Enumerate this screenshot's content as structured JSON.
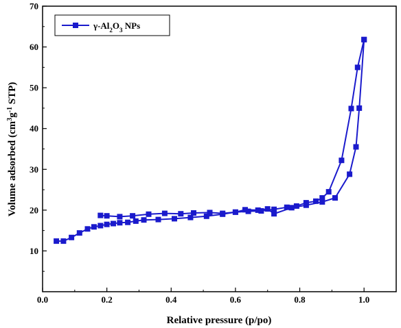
{
  "chart_data": {
    "type": "line",
    "title": "",
    "xlabel": "Relative pressure (p/po)",
    "ylabel_parts": [
      "Volume adsorbed (cm",
      "3",
      "g",
      "-1",
      " STP)"
    ],
    "xlim": [
      0.0,
      1.1
    ],
    "ylim": [
      0,
      70
    ],
    "xticks": [
      0.0,
      0.2,
      0.4,
      0.6,
      0.8,
      1.0
    ],
    "xtick_labels": [
      "0.0",
      "0.2",
      "0.4",
      "0.6",
      "0.8",
      "1.0"
    ],
    "yticks": [
      10,
      20,
      30,
      40,
      50,
      60,
      70
    ],
    "ytick_labels": [
      "10",
      "20",
      "30",
      "40",
      "50",
      "60",
      "70"
    ],
    "grid": false,
    "legend": {
      "placement": "top-left",
      "label_parts": [
        "γ-Al",
        "2",
        "O",
        "3",
        " NPs"
      ]
    },
    "series": [
      {
        "name": "γ-Al2O3 NPs",
        "color": "#1a1acc",
        "marker": "square",
        "adsorption": {
          "x": [
            0.043,
            0.065,
            0.09,
            0.115,
            0.14,
            0.16,
            0.18,
            0.2,
            0.22,
            0.24,
            0.265,
            0.29,
            0.315,
            0.36,
            0.41,
            0.46,
            0.51,
            0.56,
            0.6,
            0.64,
            0.68,
            0.72,
            0.76,
            0.79,
            0.82,
            0.85,
            0.87,
            0.89,
            0.93,
            0.96,
            0.98,
            1.0
          ],
          "y": [
            12.4,
            12.4,
            13.3,
            14.4,
            15.4,
            15.9,
            16.2,
            16.5,
            16.7,
            16.9,
            17.0,
            17.3,
            17.6,
            17.7,
            17.9,
            18.2,
            18.5,
            19.0,
            19.5,
            19.7,
            19.8,
            20.2,
            20.7,
            21.0,
            21.8,
            22.2,
            23.0,
            24.5,
            32.2,
            44.9,
            55.0,
            61.8
          ]
        },
        "desorption": {
          "x": [
            1.0,
            0.985,
            0.975,
            0.955,
            0.91,
            0.87,
            0.82,
            0.775,
            0.72,
            0.7,
            0.67,
            0.63,
            0.6,
            0.56,
            0.52,
            0.47,
            0.43,
            0.38,
            0.33,
            0.28,
            0.24,
            0.2,
            0.18
          ],
          "y": [
            61.8,
            45.0,
            35.5,
            28.8,
            23.0,
            22.0,
            21.2,
            20.6,
            19.1,
            20.3,
            20.0,
            20.1,
            19.5,
            19.2,
            19.4,
            19.3,
            19.1,
            19.2,
            19.0,
            18.6,
            18.4,
            18.6,
            18.7
          ]
        }
      }
    ]
  }
}
